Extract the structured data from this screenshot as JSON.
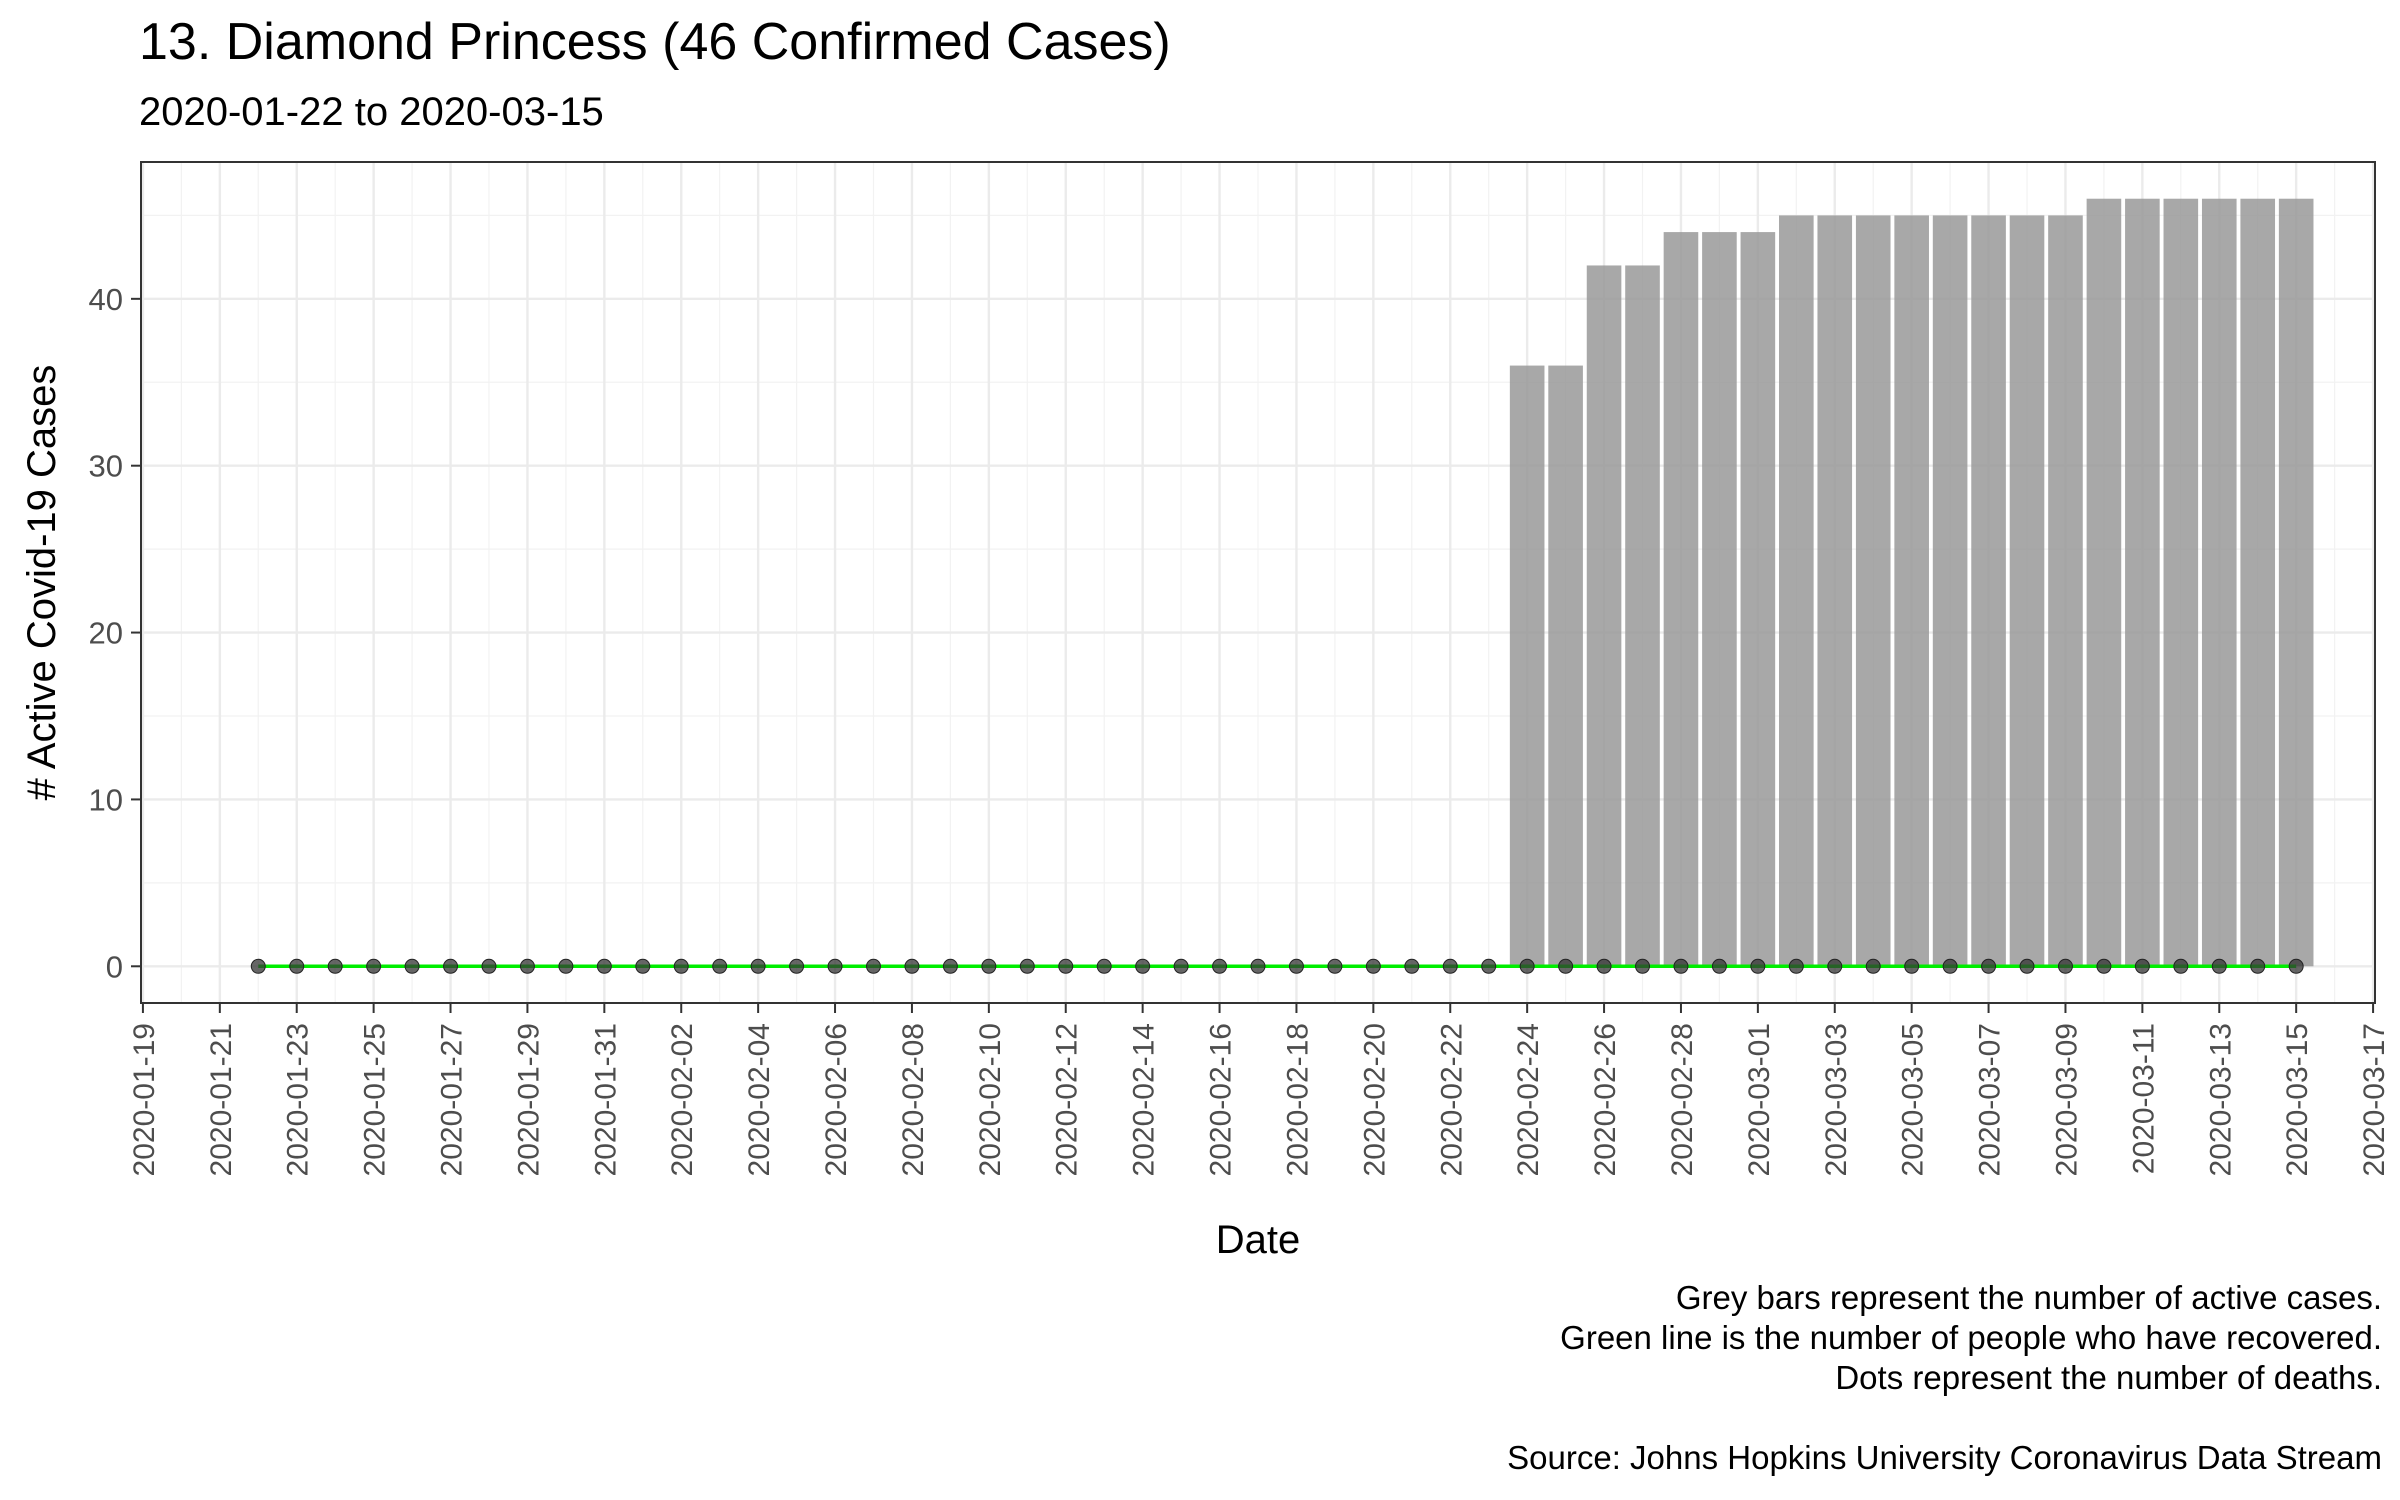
{
  "chart_data": {
    "type": "bar",
    "title": "13. Diamond Princess (46 Confirmed Cases)",
    "subtitle": "2020-01-22 to 2020-03-15",
    "xlabel": "Date",
    "ylabel": "# Active Covid-19 Cases",
    "ylim": [
      -2.2,
      48.2
    ],
    "xlim": [
      "2020-01-19",
      "2020-03-17"
    ],
    "x_ticks": [
      "2020-01-19",
      "2020-01-21",
      "2020-01-23",
      "2020-01-25",
      "2020-01-27",
      "2020-01-29",
      "2020-01-31",
      "2020-02-02",
      "2020-02-04",
      "2020-02-06",
      "2020-02-08",
      "2020-02-10",
      "2020-02-12",
      "2020-02-14",
      "2020-02-16",
      "2020-02-18",
      "2020-02-20",
      "2020-02-22",
      "2020-02-24",
      "2020-02-26",
      "2020-02-28",
      "2020-03-01",
      "2020-03-03",
      "2020-03-05",
      "2020-03-07",
      "2020-03-09",
      "2020-03-11",
      "2020-03-13",
      "2020-03-15",
      "2020-03-17"
    ],
    "y_ticks": [
      0,
      10,
      20,
      30,
      40
    ],
    "grid": true,
    "dates": [
      "2020-01-22",
      "2020-01-23",
      "2020-01-24",
      "2020-01-25",
      "2020-01-26",
      "2020-01-27",
      "2020-01-28",
      "2020-01-29",
      "2020-01-30",
      "2020-01-31",
      "2020-02-01",
      "2020-02-02",
      "2020-02-03",
      "2020-02-04",
      "2020-02-05",
      "2020-02-06",
      "2020-02-07",
      "2020-02-08",
      "2020-02-09",
      "2020-02-10",
      "2020-02-11",
      "2020-02-12",
      "2020-02-13",
      "2020-02-14",
      "2020-02-15",
      "2020-02-16",
      "2020-02-17",
      "2020-02-18",
      "2020-02-19",
      "2020-02-20",
      "2020-02-21",
      "2020-02-22",
      "2020-02-23",
      "2020-02-24",
      "2020-02-25",
      "2020-02-26",
      "2020-02-27",
      "2020-02-28",
      "2020-02-29",
      "2020-03-01",
      "2020-03-02",
      "2020-03-03",
      "2020-03-04",
      "2020-03-05",
      "2020-03-06",
      "2020-03-07",
      "2020-03-08",
      "2020-03-09",
      "2020-03-10",
      "2020-03-11",
      "2020-03-12",
      "2020-03-13",
      "2020-03-14",
      "2020-03-15"
    ],
    "series": [
      {
        "name": "Active cases",
        "mark": "bar",
        "color": "#999999",
        "values": [
          0,
          0,
          0,
          0,
          0,
          0,
          0,
          0,
          0,
          0,
          0,
          0,
          0,
          0,
          0,
          0,
          0,
          0,
          0,
          0,
          0,
          0,
          0,
          0,
          0,
          0,
          0,
          0,
          0,
          0,
          0,
          0,
          0,
          36,
          36,
          42,
          42,
          44,
          44,
          44,
          45,
          45,
          45,
          45,
          45,
          45,
          45,
          45,
          46,
          46,
          46,
          46,
          46,
          46
        ]
      },
      {
        "name": "Recovered",
        "mark": "line",
        "color": "#00ee00",
        "values": [
          0,
          0,
          0,
          0,
          0,
          0,
          0,
          0,
          0,
          0,
          0,
          0,
          0,
          0,
          0,
          0,
          0,
          0,
          0,
          0,
          0,
          0,
          0,
          0,
          0,
          0,
          0,
          0,
          0,
          0,
          0,
          0,
          0,
          0,
          0,
          0,
          0,
          0,
          0,
          0,
          0,
          0,
          0,
          0,
          0,
          0,
          0,
          0,
          0,
          0,
          0,
          0,
          0,
          0
        ]
      },
      {
        "name": "Deaths",
        "mark": "point",
        "color": "#333333",
        "values": [
          0,
          0,
          0,
          0,
          0,
          0,
          0,
          0,
          0,
          0,
          0,
          0,
          0,
          0,
          0,
          0,
          0,
          0,
          0,
          0,
          0,
          0,
          0,
          0,
          0,
          0,
          0,
          0,
          0,
          0,
          0,
          0,
          0,
          0,
          0,
          0,
          0,
          0,
          0,
          0,
          0,
          0,
          0,
          0,
          0,
          0,
          0,
          0,
          0,
          0,
          0,
          0,
          0,
          0
        ]
      }
    ]
  },
  "caption": {
    "lines": [
      "Grey bars represent the number of active cases.",
      "Green line is the number of people who have recovered.",
      "Dots represent the number of deaths."
    ],
    "source": "Source: Johns Hopkins University Coronavirus Data Stream"
  }
}
